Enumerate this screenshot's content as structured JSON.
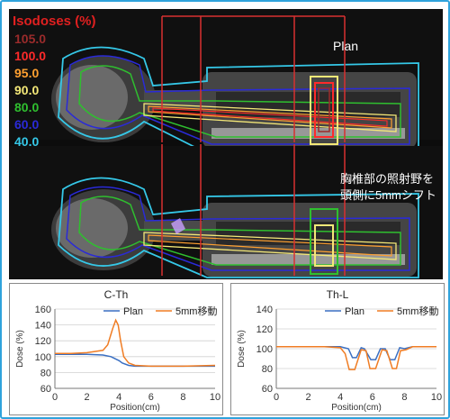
{
  "ct": {
    "legend_title": "Isodoses (%)",
    "isodose_levels": [
      {
        "label": "105.0",
        "color": "#9b2b2b"
      },
      {
        "label": "100.0",
        "color": "#ff2a2a"
      },
      {
        "label": "95.0",
        "color": "#ffa030"
      },
      {
        "label": "90.0",
        "color": "#f4e878"
      },
      {
        "label": "80.0",
        "color": "#2fbf2f"
      },
      {
        "label": "60.0",
        "color": "#2a2ad8"
      },
      {
        "label": "40.0",
        "color": "#35c8e8"
      }
    ],
    "annotation_plan": "Plan",
    "annotation_shift": "胸椎部の照射野を頭側に5mmシフト"
  },
  "chart_data": [
    {
      "type": "line",
      "title": "C-Th",
      "xlabel": "Position(cm)",
      "ylabel": "Dose (%)",
      "xlim": [
        0,
        10
      ],
      "ylim": [
        60,
        160
      ],
      "xticks": [
        "0",
        "2",
        "4",
        "6",
        "8",
        "10"
      ],
      "yticks": [
        "60",
        "80",
        "100",
        "120",
        "140",
        "160"
      ],
      "grid": true,
      "legend": "top-right",
      "series": [
        {
          "name": "Plan",
          "color": "#3a6fc2",
          "x": [
            0,
            1,
            2,
            3,
            3.5,
            3.8,
            4,
            4.2,
            4.6,
            5,
            6,
            7,
            8,
            10
          ],
          "y": [
            103,
            103,
            103,
            102,
            100,
            97,
            95,
            92,
            89,
            88,
            88,
            88,
            88,
            88
          ]
        },
        {
          "name": "5mm移動",
          "color": "#f07d24",
          "x": [
            0,
            1,
            2,
            3,
            3.3,
            3.6,
            3.8,
            3.95,
            4.1,
            4.3,
            4.6,
            5,
            6,
            7,
            8,
            10
          ],
          "y": [
            104,
            104,
            105,
            108,
            115,
            135,
            146,
            140,
            120,
            100,
            92,
            89,
            88,
            88,
            88,
            89
          ]
        }
      ]
    },
    {
      "type": "line",
      "title": "Th-L",
      "xlabel": "Position(cm)",
      "ylabel": "Dose (%)",
      "xlim": [
        0,
        10
      ],
      "ylim": [
        60,
        140
      ],
      "xticks": [
        "0",
        "2",
        "4",
        "6",
        "8",
        "10"
      ],
      "yticks": [
        "60",
        "80",
        "100",
        "120",
        "140"
      ],
      "grid": true,
      "legend": "top-right",
      "series": [
        {
          "name": "Plan",
          "color": "#3a6fc2",
          "x": [
            0,
            1,
            2,
            3,
            4,
            4.5,
            4.75,
            5,
            5.3,
            5.5,
            5.9,
            6.2,
            6.5,
            6.8,
            7.1,
            7.4,
            7.7,
            8,
            8.5,
            9,
            10
          ],
          "y": [
            102,
            102,
            102,
            102,
            102,
            100,
            91,
            91,
            101,
            100,
            89,
            89,
            100,
            100,
            89,
            89,
            101,
            100,
            102,
            102,
            102
          ]
        },
        {
          "name": "5mm移動",
          "color": "#f07d24",
          "x": [
            0,
            1,
            2,
            3,
            4,
            4.3,
            4.55,
            4.9,
            5.3,
            5.6,
            5.85,
            6.2,
            6.6,
            6.9,
            7.25,
            7.5,
            7.75,
            8.1,
            8.5,
            9,
            10
          ],
          "y": [
            102,
            102,
            102,
            102,
            101,
            95,
            79,
            79,
            99,
            98,
            80,
            80,
            99,
            98,
            80,
            80,
            98,
            99,
            102,
            102,
            102
          ]
        }
      ]
    }
  ]
}
